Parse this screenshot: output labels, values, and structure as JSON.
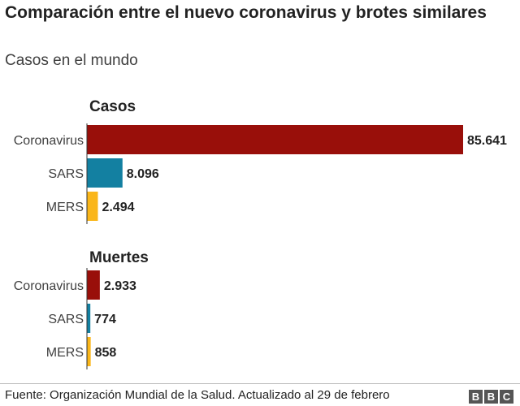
{
  "title": "Comparación entre el nuevo coronavirus y brotes similares",
  "subtitle": "Casos en el mundo",
  "source": "Fuente: Organización Mundial de la Salud. Actualizado al 29 de febrero",
  "logo": [
    "B",
    "B",
    "C"
  ],
  "chart_data": [
    {
      "type": "bar",
      "orientation": "horizontal",
      "title": "Casos",
      "categories": [
        "Coronavirus",
        "SARS",
        "MERS"
      ],
      "values": [
        85641,
        8096,
        2494
      ],
      "value_labels": [
        "85.641",
        "8.096",
        "2.494"
      ],
      "colors": [
        "#990f0a",
        "#1380a1",
        "#fab619"
      ]
    },
    {
      "type": "bar",
      "orientation": "horizontal",
      "title": "Muertes",
      "categories": [
        "Coronavirus",
        "SARS",
        "MERS"
      ],
      "values": [
        2933,
        774,
        858
      ],
      "value_labels": [
        "2.933",
        "774",
        "858"
      ],
      "colors": [
        "#990f0a",
        "#1380a1",
        "#fab619"
      ]
    }
  ]
}
